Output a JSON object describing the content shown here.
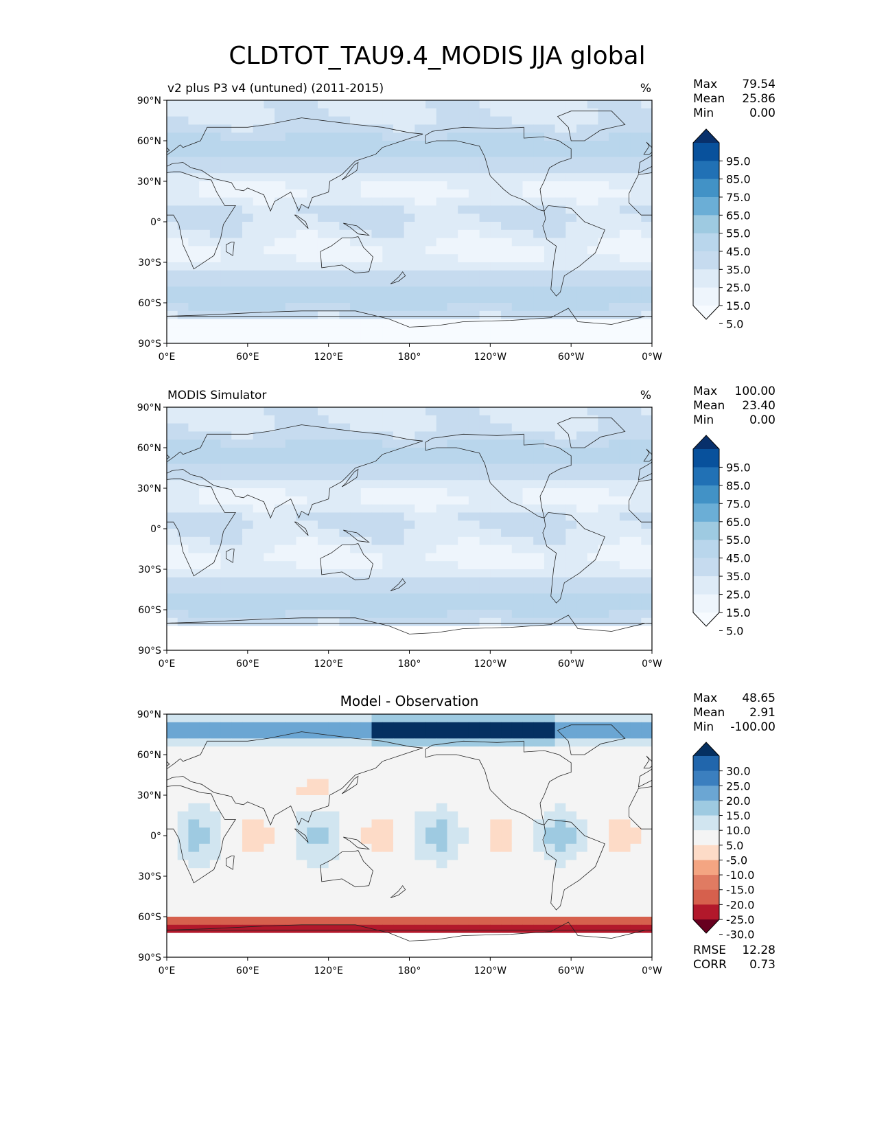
{
  "title": "CLDTOT_TAU9.4_MODIS JJA global",
  "axes": {
    "lat_ticks": [
      "90°N",
      "60°N",
      "30°N",
      "0°",
      "30°S",
      "60°S",
      "90°S"
    ],
    "lon_ticks": [
      "0°E",
      "60°E",
      "120°E",
      "180°",
      "120°W",
      "60°W",
      "0°W"
    ]
  },
  "chart_data": [
    {
      "type": "heatmap",
      "title": "v2 plus P3 v4 (untuned) (2011-2015)",
      "units": "%",
      "xlim": [
        0,
        360
      ],
      "ylim": [
        -90,
        90
      ],
      "stats": [
        {
          "label": "Max",
          "value": "79.54"
        },
        {
          "label": "Mean",
          "value": "25.86"
        },
        {
          "label": "Min",
          "value": "0.00"
        }
      ],
      "colorbar": {
        "labels": [
          "95.0",
          "85.0",
          "75.0",
          "65.0",
          "55.0",
          "45.0",
          "35.0",
          "25.0",
          "15.0",
          "5.0"
        ],
        "colors": [
          "#08306b",
          "#08519c",
          "#2171b5",
          "#4292c6",
          "#6baed6",
          "#9ecae1",
          "#b9d6ec",
          "#c6dbef",
          "#deebf7",
          "#eef5fc",
          "#f7fbff"
        ]
      }
    },
    {
      "type": "heatmap",
      "title": "MODIS Simulator",
      "units": "%",
      "xlim": [
        0,
        360
      ],
      "ylim": [
        -90,
        90
      ],
      "stats": [
        {
          "label": "Max",
          "value": "100.00"
        },
        {
          "label": "Mean",
          "value": "23.40"
        },
        {
          "label": "Min",
          "value": "0.00"
        }
      ],
      "colorbar": {
        "labels": [
          "95.0",
          "85.0",
          "75.0",
          "65.0",
          "55.0",
          "45.0",
          "35.0",
          "25.0",
          "15.0",
          "5.0"
        ],
        "colors": [
          "#08306b",
          "#08519c",
          "#2171b5",
          "#4292c6",
          "#6baed6",
          "#9ecae1",
          "#b9d6ec",
          "#c6dbef",
          "#deebf7",
          "#eef5fc",
          "#f7fbff"
        ]
      }
    },
    {
      "type": "heatmap",
      "title": "Model - Observation",
      "units": "",
      "xlim": [
        0,
        360
      ],
      "ylim": [
        -90,
        90
      ],
      "stats": [
        {
          "label": "Max",
          "value": "48.65"
        },
        {
          "label": "Mean",
          "value": "2.91"
        },
        {
          "label": "Min",
          "value": "-100.00"
        }
      ],
      "extra_stats": [
        {
          "label": "RMSE",
          "value": "12.28"
        },
        {
          "label": "CORR",
          "value": "0.73"
        }
      ],
      "colorbar": {
        "labels": [
          "30.0",
          "25.0",
          "20.0",
          "15.0",
          "10.0",
          "5.0",
          "-5.0",
          "-10.0",
          "-15.0",
          "-20.0",
          "-25.0",
          "-30.0"
        ],
        "colors": [
          "#053061",
          "#2166ac",
          "#3b7fbf",
          "#6ba6d3",
          "#9ecae1",
          "#d1e5f0",
          "#f4f4f4",
          "#fddbc7",
          "#f4a582",
          "#e07b62",
          "#d6604d",
          "#b2182b",
          "#67001f"
        ]
      }
    }
  ]
}
